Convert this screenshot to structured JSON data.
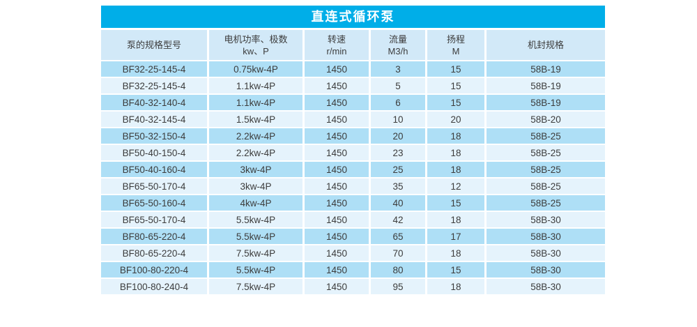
{
  "title": {
    "text": "直连式循环泵"
  },
  "colors": {
    "title_bar_bg": "#00AEE8",
    "title_text": "#FFFFFF",
    "header_bg": "#D2E9F8",
    "row_odd_bg": "#AEDFF6",
    "row_even_bg": "#E5F3FC",
    "cell_text": "#3C3C3C",
    "separator": "#FFFFFF"
  },
  "table": {
    "header": [
      {
        "line1": "泵的规格型号",
        "line2": ""
      },
      {
        "line1": "电机功率、极数",
        "line2": "kw、P"
      },
      {
        "line1": "转速",
        "line2": "r/min"
      },
      {
        "line1": "流量",
        "line2": "M3/h"
      },
      {
        "line1": "扬程",
        "line2": "M"
      },
      {
        "line1": "机封规格",
        "line2": ""
      }
    ]
  },
  "chart_data": {
    "type": "table",
    "title": "直连式循环泵",
    "columns": [
      "泵的规格型号",
      "电机功率、极数 kw、P",
      "转速 r/min",
      "流量 M3/h",
      "扬程 M",
      "机封规格"
    ],
    "rows": [
      [
        "BF32-25-145-4",
        "0.75kw-4P",
        "1450",
        "3",
        "15",
        "58B-19"
      ],
      [
        "BF32-25-145-4",
        "1.1kw-4P",
        "1450",
        "5",
        "15",
        "58B-19"
      ],
      [
        "BF40-32-140-4",
        "1.1kw-4P",
        "1450",
        "6",
        "15",
        "58B-19"
      ],
      [
        "BF40-32-145-4",
        "1.5kw-4P",
        "1450",
        "10",
        "20",
        "58B-20"
      ],
      [
        "BF50-32-150-4",
        "2.2kw-4P",
        "1450",
        "20",
        "18",
        "58B-25"
      ],
      [
        "BF50-40-150-4",
        "2.2kw-4P",
        "1450",
        "23",
        "18",
        "58B-25"
      ],
      [
        "BF50-40-160-4",
        "3kw-4P",
        "1450",
        "25",
        "18",
        "58B-25"
      ],
      [
        "BF65-50-170-4",
        "3kw-4P",
        "1450",
        "35",
        "12",
        "58B-25"
      ],
      [
        "BF65-50-160-4",
        "4kw-4P",
        "1450",
        "40",
        "15",
        "58B-25"
      ],
      [
        "BF65-50-170-4",
        "5.5kw-4P",
        "1450",
        "42",
        "18",
        "58B-30"
      ],
      [
        "BF80-65-220-4",
        "5.5kw-4P",
        "1450",
        "65",
        "17",
        "58B-30"
      ],
      [
        "BF80-65-220-4",
        "7.5kw-4P",
        "1450",
        "70",
        "18",
        "58B-30"
      ],
      [
        "BF100-80-220-4",
        "5.5kw-4P",
        "1450",
        "80",
        "15",
        "58B-30"
      ],
      [
        "BF100-80-240-4",
        "7.5kw-4P",
        "1450",
        "95",
        "18",
        "58B-30"
      ]
    ]
  }
}
